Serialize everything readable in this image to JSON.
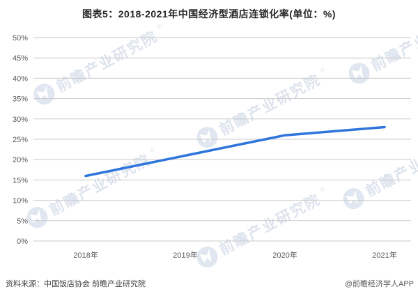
{
  "title": "图表5：2018-2021年中国经济型酒店连锁化率(单位：%)",
  "chart_data": {
    "type": "line",
    "title": "图表5：2018-2021年中国经济型酒店连锁化率(单位：%)",
    "series_name": "经济型酒店连锁化率",
    "categories": [
      "2018年",
      "2019年",
      "2020年",
      "2021年"
    ],
    "values": [
      16,
      21,
      26,
      28
    ],
    "unit": "%",
    "ylim": [
      0,
      50
    ],
    "y_tick_step": 5,
    "y_tick_suffix": "%",
    "grid": true,
    "legend": "none",
    "line_color": "#2E75DC"
  },
  "watermark": {
    "text": "前瞻产业研究院",
    "registered": "®"
  },
  "footer": {
    "source": "资料来源：中国饭店协会 前瞻产业研究院",
    "credit": "@前瞻经济学人APP"
  },
  "colors": {
    "background": "#ffffff",
    "title_text": "#262626",
    "axis_label": "#595959",
    "gridline": "#c9c9c9",
    "watermark": "#dde4ee",
    "line": "#2E75DC"
  }
}
